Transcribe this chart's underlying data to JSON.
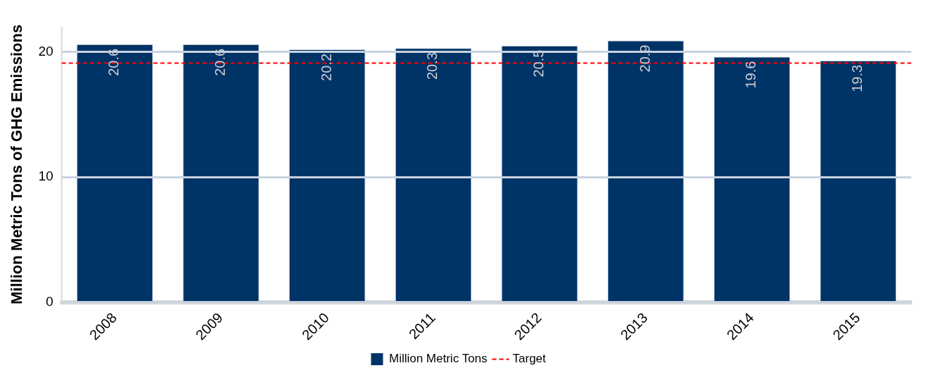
{
  "chart_data": {
    "type": "bar",
    "ylabel": "Million Metric Tons of GHG Emissions",
    "categories": [
      "2008",
      "2009",
      "2010",
      "2011",
      "2012",
      "2013",
      "2014",
      "2015"
    ],
    "series": [
      {
        "name": "Million Metric Tons",
        "color": "#003366",
        "values": [
          20.6,
          20.6,
          20.2,
          20.3,
          20.5,
          20.9,
          19.6,
          19.3
        ]
      }
    ],
    "ylim": [
      0,
      22
    ],
    "yticks": [
      0,
      10,
      20
    ],
    "grid": "y",
    "data_labels": true,
    "legend": "bottom",
    "ref_lines": [
      {
        "axis": "y",
        "value": 19.1,
        "label": "Target",
        "color": "#ff0000",
        "line_style": "dashed"
      }
    ]
  }
}
